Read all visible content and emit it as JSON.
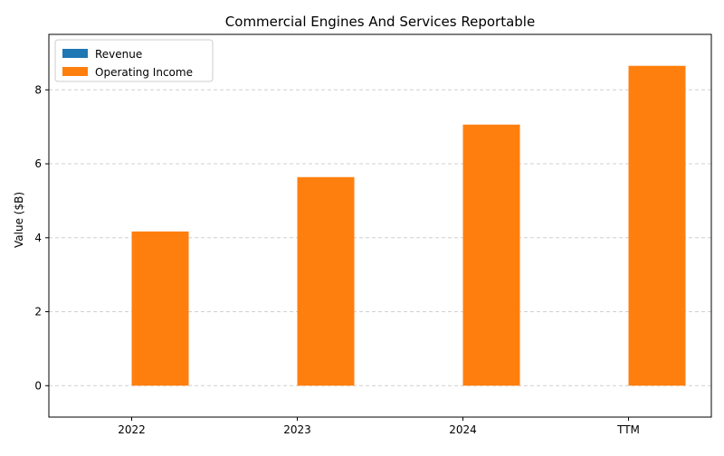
{
  "chart_data": {
    "type": "bar",
    "title": "Commercial Engines And Services Reportable",
    "xlabel": "",
    "ylabel": "Value ($B)",
    "categories": [
      "2022",
      "2023",
      "2024",
      "TTM"
    ],
    "series": [
      {
        "name": "Revenue",
        "color": "#1f77b4",
        "values": [
          0,
          0,
          0,
          0
        ]
      },
      {
        "name": "Operating Income",
        "color": "#ff7f0e",
        "values": [
          4.17,
          5.64,
          7.06,
          8.65
        ]
      }
    ],
    "ylim": [
      -0.85,
      9.5
    ],
    "yticks": [
      0,
      2,
      4,
      6,
      8
    ],
    "grid": "y-dashed",
    "legend_position": "top-left"
  }
}
